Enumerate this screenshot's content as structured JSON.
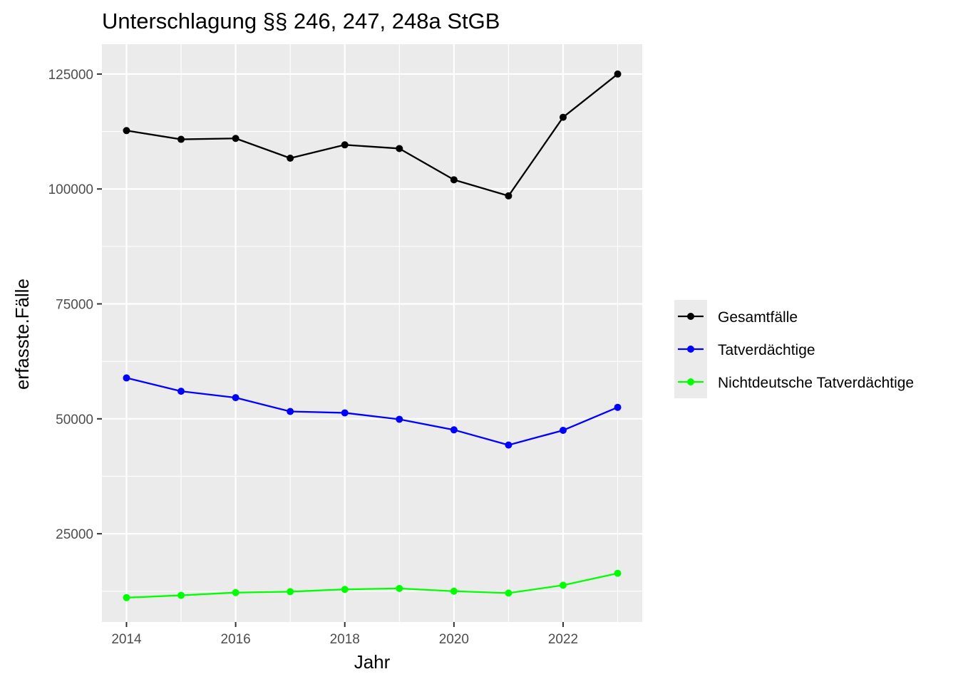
{
  "chart_data": {
    "type": "line",
    "title": "Unterschlagung §§ 246, 247, 248a StGB",
    "xlabel": "Jahr",
    "ylabel": "erfasste.Fälle",
    "x": [
      2014,
      2015,
      2016,
      2017,
      2018,
      2019,
      2020,
      2021,
      2022,
      2023
    ],
    "xlim": [
      2013.55,
      2023.45
    ],
    "ylim": [
      5800,
      131500
    ],
    "x_ticks": [
      {
        "value": 2014,
        "label": "2014"
      },
      {
        "value": 2016,
        "label": "2016"
      },
      {
        "value": 2018,
        "label": "2018"
      },
      {
        "value": 2020,
        "label": "2020"
      },
      {
        "value": 2022,
        "label": "2022"
      }
    ],
    "y_ticks": [
      {
        "value": 25000,
        "label": "25000"
      },
      {
        "value": 50000,
        "label": "50000"
      },
      {
        "value": 75000,
        "label": "75000"
      },
      {
        "value": 100000,
        "label": "100000"
      },
      {
        "value": 125000,
        "label": "125000"
      }
    ],
    "x_minor": [
      2015,
      2017,
      2019,
      2021,
      2023
    ],
    "y_minor": [
      12500,
      37500,
      62500,
      87500,
      112500
    ],
    "grid": true,
    "legend_position": "right",
    "series": [
      {
        "name": "Gesamtfälle",
        "color": "#000000",
        "values": [
          112700,
          110800,
          111000,
          106700,
          109600,
          108800,
          102000,
          98500,
          115600,
          125000
        ]
      },
      {
        "name": "Tatverdächtige",
        "color": "#0000ff",
        "values": [
          58900,
          56000,
          54600,
          51600,
          51300,
          49900,
          47600,
          44300,
          47500,
          52500
        ]
      },
      {
        "name": "Nichtdeutsche Tatverdächtige",
        "color": "#00ff00",
        "values": [
          11100,
          11600,
          12200,
          12400,
          12900,
          13100,
          12500,
          12100,
          13800,
          16400
        ]
      }
    ]
  }
}
